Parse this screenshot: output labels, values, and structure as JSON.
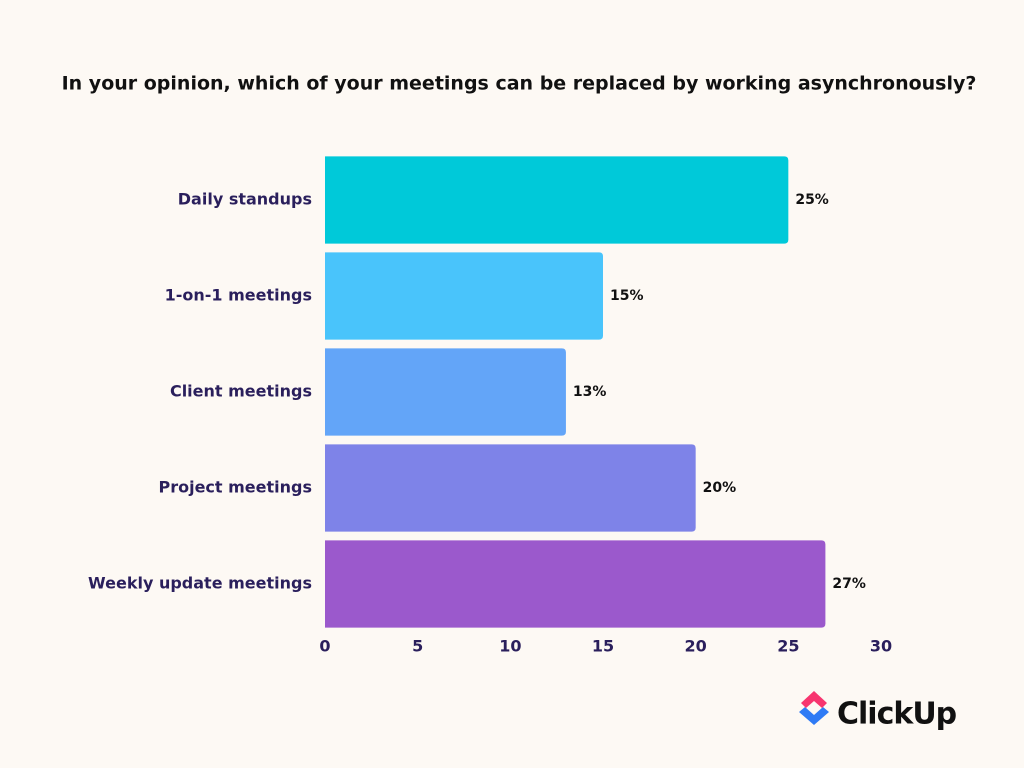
{
  "chart_data": {
    "type": "hbar",
    "title": "In your opinion, which of your meetings can be replaced by working asynchronously?",
    "categories": [
      "Daily standups",
      "1-on-1 meetings",
      "Client meetings",
      "Project meetings",
      "Weekly update meetings"
    ],
    "values": [
      25,
      15,
      13,
      20,
      27
    ],
    "value_labels": [
      "25%",
      "15%",
      "13%",
      "20%",
      "27%"
    ],
    "colors": [
      "#00c9d9",
      "#49c4fb",
      "#63a5f8",
      "#7e83e8",
      "#9b59cc"
    ],
    "xlim": [
      0,
      30
    ],
    "xticks": [
      0,
      5,
      10,
      15,
      20,
      25,
      30
    ],
    "grid": false
  },
  "logo": "ClickUp"
}
